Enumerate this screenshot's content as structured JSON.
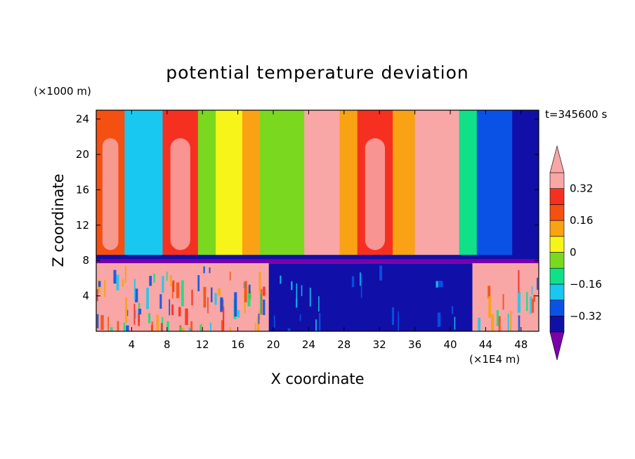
{
  "chart_data": {
    "type": "heatmap",
    "title": "potential temperature deviation",
    "xlabel": "X coordinate",
    "ylabel": "Z coordinate",
    "x_unit": "(×1E4 m)",
    "y_unit": "(×1000 m)",
    "time_label": "t=345600 s",
    "xlim": [
      0,
      50
    ],
    "ylim": [
      0,
      25
    ],
    "x_ticks": [
      4,
      8,
      12,
      16,
      20,
      24,
      28,
      32,
      36,
      40,
      44,
      48
    ],
    "y_ticks": [
      4,
      8,
      12,
      16,
      20,
      24
    ],
    "colorbar": {
      "levels": [
        -0.4,
        -0.32,
        -0.24,
        -0.16,
        -0.08,
        0,
        0.08,
        0.16,
        0.24,
        0.32,
        0.4
      ],
      "tick_labels": [
        "0.32",
        "0.16",
        "0",
        "−0.16",
        "−0.32"
      ],
      "tick_values": [
        0.32,
        0.16,
        0,
        -0.16,
        -0.32
      ],
      "colors": [
        "#7a00aa",
        "#1010a8",
        "#0a52e6",
        "#19c8f0",
        "#10e088",
        "#7ad81e",
        "#f6f418",
        "#f8a214",
        "#f45012",
        "#f63020",
        "#f8a6a6"
      ],
      "extend": "both"
    },
    "upper_columns": [
      {
        "x0": 0,
        "x1": 3.2,
        "value": 0.22
      },
      {
        "x0": 3.2,
        "x1": 7.5,
        "value": -0.18
      },
      {
        "x0": 7.5,
        "x1": 11.5,
        "value": 0.24
      },
      {
        "x0": 11.5,
        "x1": 13.5,
        "value": -0.05
      },
      {
        "x0": 13.5,
        "x1": 16.5,
        "value": 0.02
      },
      {
        "x0": 16.5,
        "x1": 18.5,
        "value": 0.15
      },
      {
        "x0": 18.5,
        "x1": 23.5,
        "value": -0.02
      },
      {
        "x0": 23.5,
        "x1": 27.5,
        "value": 0.42
      },
      {
        "x0": 27.5,
        "x1": 29.5,
        "value": 0.15
      },
      {
        "x0": 29.5,
        "x1": 33.5,
        "value": 0.28
      },
      {
        "x0": 33.5,
        "x1": 36.0,
        "value": 0.12
      },
      {
        "x0": 36.0,
        "x1": 41.0,
        "value": 0.42
      },
      {
        "x0": 41.0,
        "x1": 43.0,
        "value": -0.14
      },
      {
        "x0": 43.0,
        "x1": 47.0,
        "value": -0.28
      },
      {
        "x0": 47.0,
        "x1": 50.0,
        "value": -0.36
      }
    ],
    "lower_regions": [
      {
        "x0": 0,
        "x1": 19.5,
        "value": 0.42
      },
      {
        "x0": 19.5,
        "x1": 42.5,
        "value": -0.38
      },
      {
        "x0": 42.5,
        "x1": 50,
        "value": 0.42
      }
    ],
    "inversion_height": 8
  }
}
